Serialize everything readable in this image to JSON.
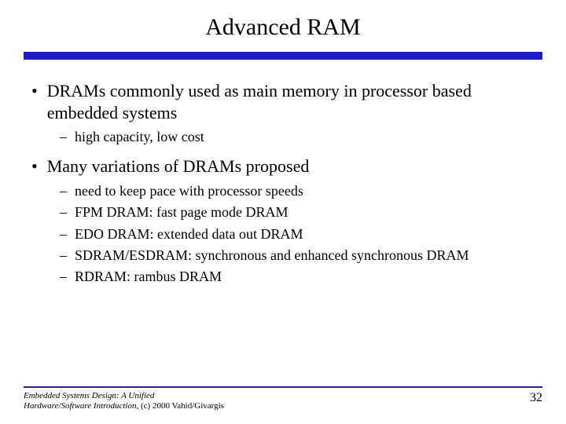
{
  "title": "Advanced RAM",
  "colors": {
    "rule": "#1f1fb5",
    "text": "#000000",
    "background": "#ffffff"
  },
  "bullets": [
    {
      "text": "DRAMs commonly used as main memory in processor based embedded systems",
      "sub": [
        "high capacity, low cost"
      ]
    },
    {
      "text": "Many variations of DRAMs proposed",
      "sub": [
        "need to keep pace with processor speeds",
        "FPM DRAM: fast page mode DRAM",
        "EDO DRAM: extended data out DRAM",
        "SDRAM/ESDRAM: synchronous and enhanced synchronous DRAM",
        "RDRAM: rambus DRAM"
      ]
    }
  ],
  "footer": {
    "line1": "Embedded Systems Design: A Unified",
    "line2_italic": "Hardware/Software Introduction",
    "line2_plain": ", (c) 2000 Vahid/Givargis"
  },
  "page_number": "32"
}
